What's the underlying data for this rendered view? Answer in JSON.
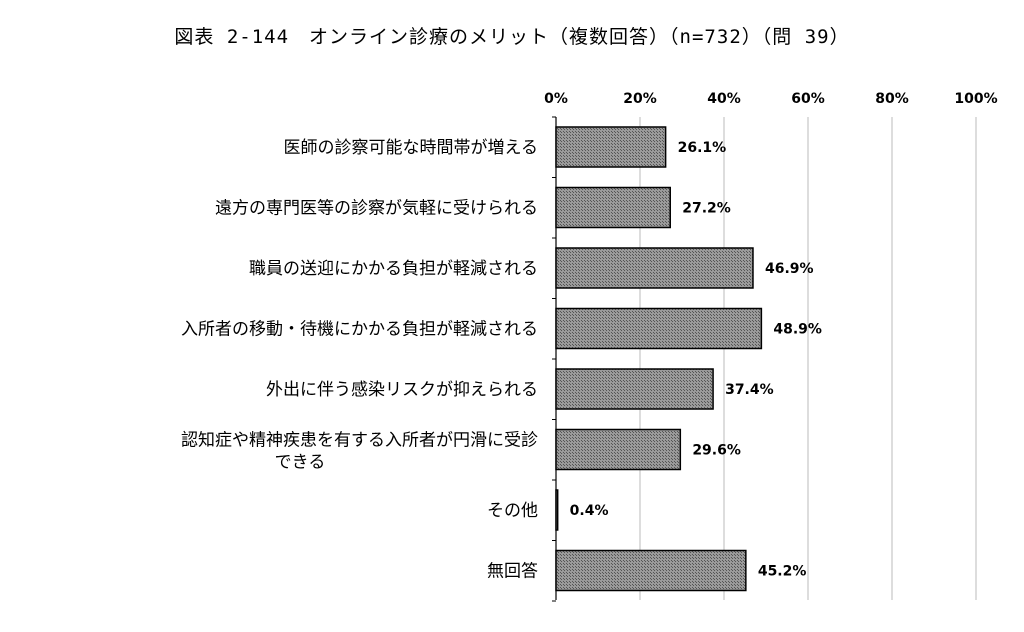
{
  "chart_data": {
    "type": "bar",
    "orientation": "horizontal",
    "title": "図表 2-144　オンライン診療のメリット（複数回答）（n=732）（問 39）",
    "categories": [
      "医師の診察可能な時間帯が増える",
      "遠方の専門医等の診察が気軽に受けられる",
      "職員の送迎にかかる負担が軽減される",
      "入所者の移動・待機にかかる負担が軽減される",
      "外出に伴う感染リスクが抑えられる",
      "認知症や精神疾患を有する入所者が円滑に受診できる",
      "その他",
      "無回答"
    ],
    "category_lines": [
      [
        "医師の診察可能な時間帯が増える"
      ],
      [
        "遠方の専門医等の診察が気軽に受けられる"
      ],
      [
        "職員の送迎にかかる負担が軽減される"
      ],
      [
        "入所者の移動・待機にかかる負担が軽減される"
      ],
      [
        "外出に伴う感染リスクが抑えられる"
      ],
      [
        "認知症や精神疾患を有する入所者が円滑に受診",
        "できる"
      ],
      [
        "その他"
      ],
      [
        "無回答"
      ]
    ],
    "values": [
      26.1,
      27.2,
      46.9,
      48.9,
      37.4,
      29.6,
      0.4,
      45.2
    ],
    "value_labels": [
      "26.1%",
      "27.2%",
      "46.9%",
      "48.9%",
      "37.4%",
      "29.6%",
      "0.4%",
      "45.2%"
    ],
    "xlim": [
      0,
      100
    ],
    "xticks": [
      0,
      20,
      40,
      60,
      80,
      100
    ],
    "xtick_labels": [
      "0%",
      "20%",
      "40%",
      "60%",
      "80%",
      "100%"
    ],
    "axis_position": "top",
    "grid": true,
    "bar_fill": "#8a8a8a",
    "bar_stroke": "#000000"
  }
}
